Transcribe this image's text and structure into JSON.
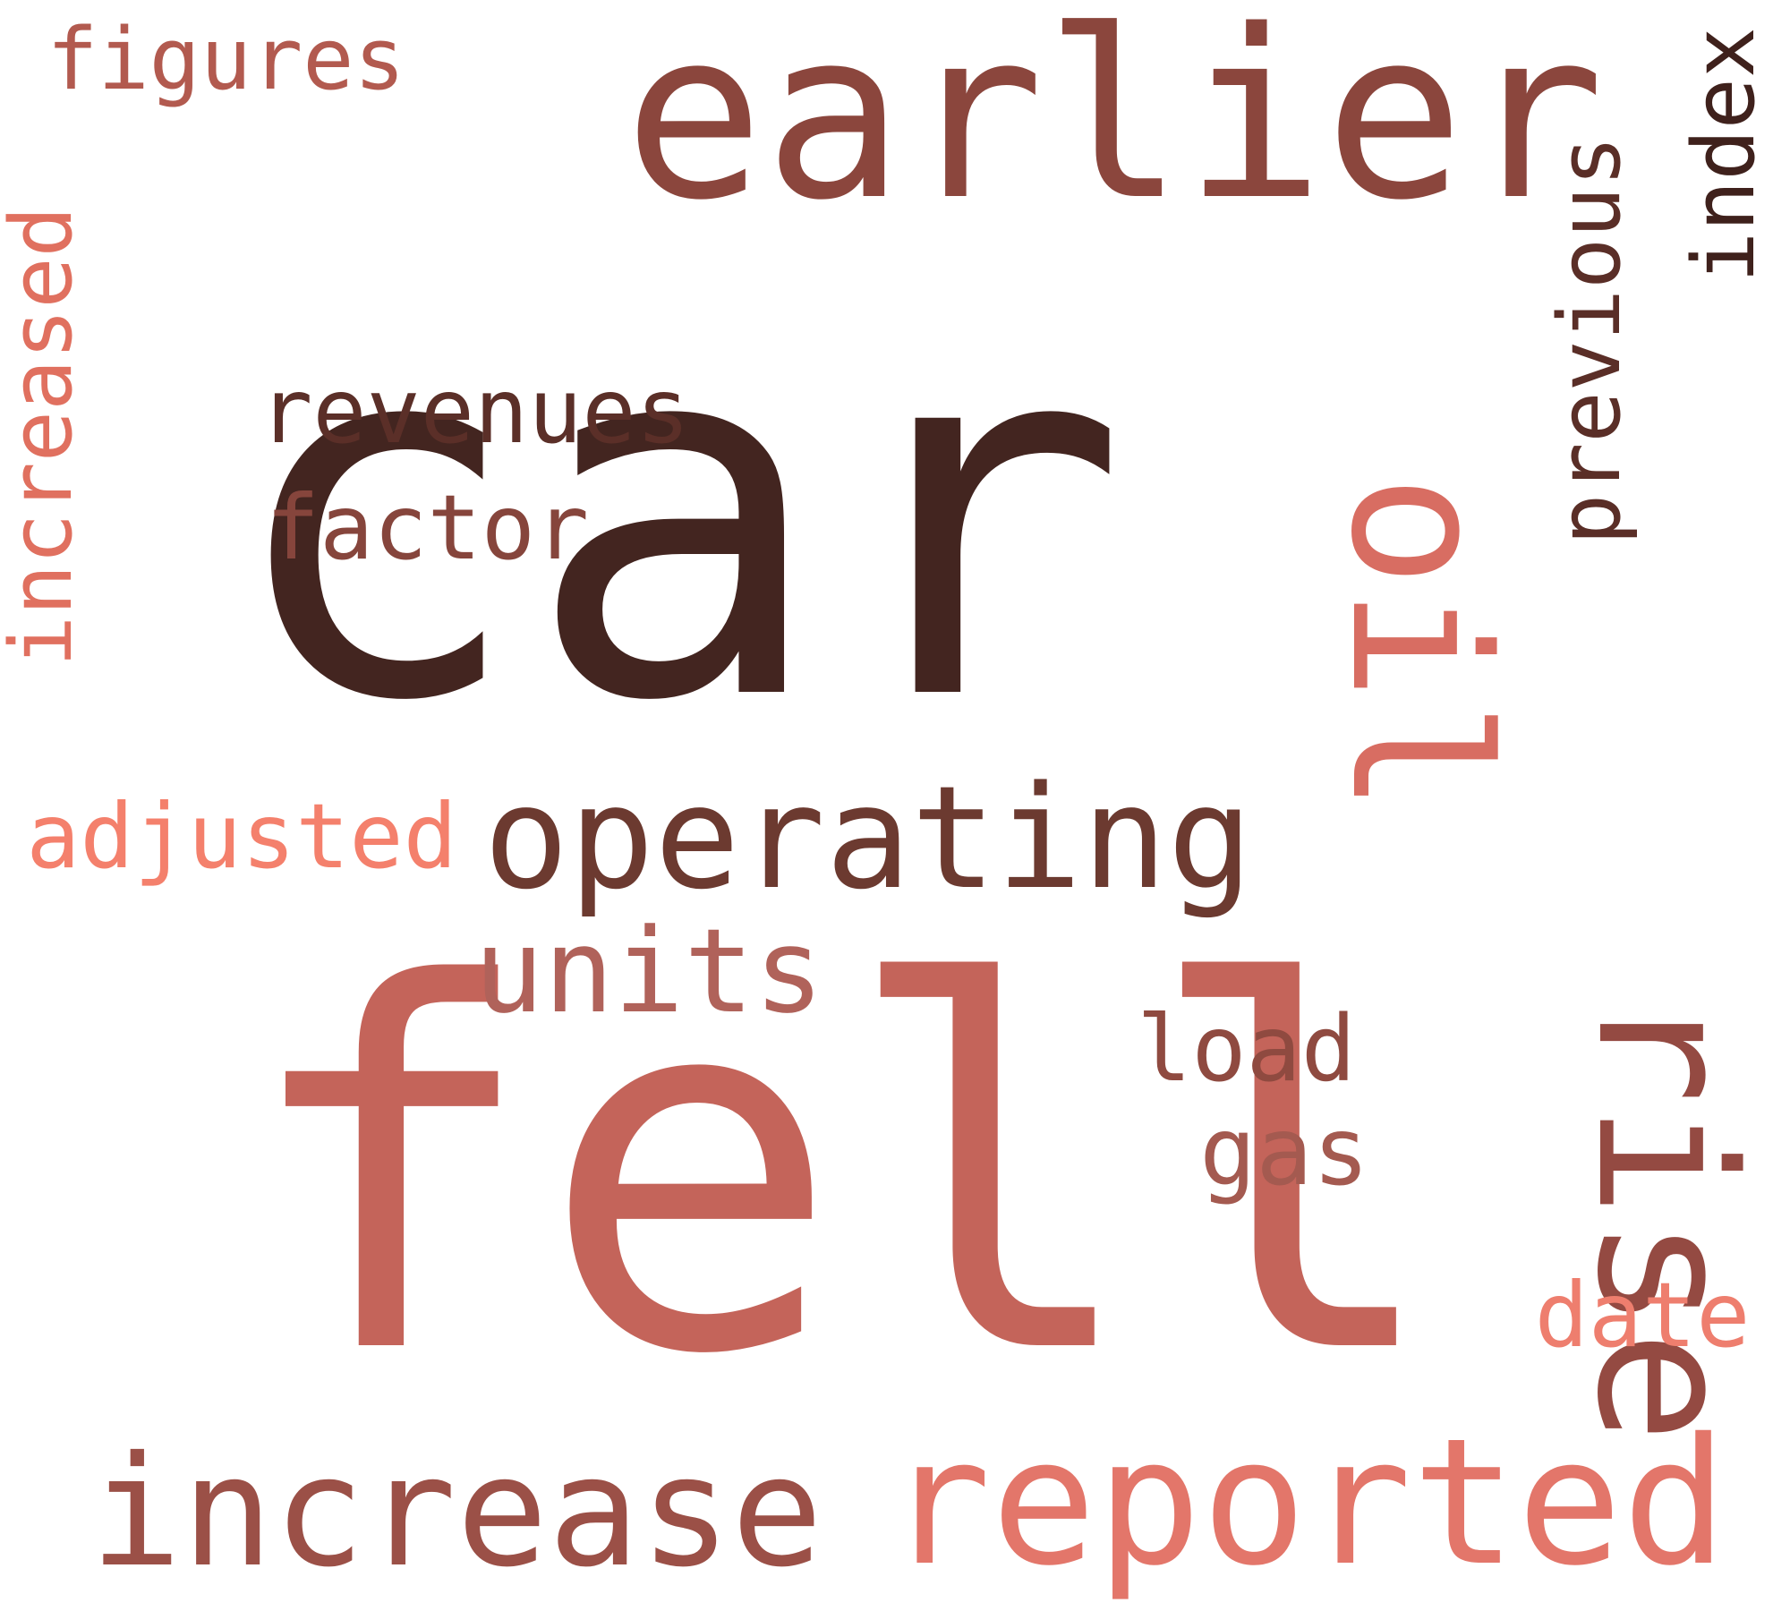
{
  "palette": {
    "darkest": "#432520",
    "dark": "#6c3a30",
    "medium_dark": "#8b463d",
    "medium": "#a45a50",
    "medium_light": "#c4645a",
    "light": "#d86d62",
    "lightest": "#f4806c"
  },
  "words": [
    {
      "id": "car",
      "text": "car",
      "color": "#432520"
    },
    {
      "id": "fell",
      "text": "fell",
      "color": "#c4645a"
    },
    {
      "id": "earlier",
      "text": "earlier",
      "color": "#8b463d"
    },
    {
      "id": "rise",
      "text": "rise",
      "color": "#944a42"
    },
    {
      "id": "oil",
      "text": "oil",
      "color": "#d86d62"
    },
    {
      "id": "increase",
      "text": "increase",
      "color": "#9b5047"
    },
    {
      "id": "reported",
      "text": "reported",
      "color": "#e3766a"
    },
    {
      "id": "operating",
      "text": "operating",
      "color": "#6c3a30"
    },
    {
      "id": "units",
      "text": "units",
      "color": "#b0625a"
    },
    {
      "id": "revenues",
      "text": "revenues",
      "color": "#5b2f28"
    },
    {
      "id": "factor",
      "text": "factor",
      "color": "#86453c"
    },
    {
      "id": "adjusted",
      "text": "adjusted",
      "color": "#f4806c"
    },
    {
      "id": "increased",
      "text": "increased",
      "color": "#e0705f"
    },
    {
      "id": "figures",
      "text": "figures",
      "color": "#b25a4f"
    },
    {
      "id": "previous",
      "text": "previous",
      "color": "#5a2e27"
    },
    {
      "id": "index",
      "text": "index",
      "color": "#3f211c"
    },
    {
      "id": "load",
      "text": "load",
      "color": "#8f4a40"
    },
    {
      "id": "gas",
      "text": "gas",
      "color": "#a45a50"
    },
    {
      "id": "date",
      "text": "date",
      "color": "#ee7e6e"
    }
  ]
}
